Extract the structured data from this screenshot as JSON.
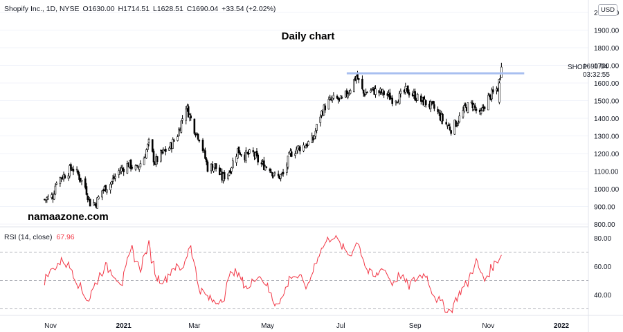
{
  "header": {
    "symbol": "Shopify Inc., 1D, NYSE",
    "open": "O1630.00",
    "high": "H1714.51",
    "low": "L1628.51",
    "close": "C1690.04",
    "change": "+33.54 (+2.02%)"
  },
  "title": "Daily chart",
  "watermark": "namaazone.com",
  "currency_button": "USD",
  "price_tag": {
    "symbol": "SHOP",
    "price": "1690.04",
    "countdown": "03:32:55"
  },
  "rsi_legend": {
    "label": "RSI (14, close)",
    "value": "67.96"
  },
  "colors": {
    "candle": "#000000",
    "resistance": "#a8bff0",
    "rsi": "#f23645",
    "grid": "#f0f3fa",
    "axis_text": "#131722"
  },
  "chart_data": [
    {
      "type": "candlestick",
      "title": "Daily chart",
      "series": [
        {
          "name": "Shopify Inc., 1D, NYSE"
        }
      ],
      "x_ticks": [
        "Nov",
        "2021",
        "Mar",
        "May",
        "Jul",
        "Sep",
        "Nov",
        "2022"
      ],
      "y_ticks": [
        800,
        900,
        1000,
        1100,
        1200,
        1300,
        1400,
        1500,
        1600,
        1700,
        1800,
        1900,
        2000
      ],
      "ylim": [
        800,
        2000
      ],
      "grid": false,
      "last_close": 1690.04,
      "resistance_level": 1655,
      "close_path": [
        [
          "2020-10-27",
          940
        ],
        [
          "2020-11-03",
          960
        ],
        [
          "2020-11-06",
          1050
        ],
        [
          "2020-11-13",
          1080
        ],
        [
          "2020-11-19",
          1120
        ],
        [
          "2020-11-24",
          1080
        ],
        [
          "2020-11-30",
          1010
        ],
        [
          "2020-12-04",
          920
        ],
        [
          "2020-12-09",
          920
        ],
        [
          "2020-12-14",
          990
        ],
        [
          "2020-12-21",
          1030
        ],
        [
          "2020-12-28",
          1100
        ],
        [
          "2021-01-05",
          1140
        ],
        [
          "2021-01-12",
          1110
        ],
        [
          "2021-01-18",
          1180
        ],
        [
          "2021-01-22",
          1260
        ],
        [
          "2021-01-27",
          1150
        ],
        [
          "2021-02-02",
          1200
        ],
        [
          "2021-02-09",
          1240
        ],
        [
          "2021-02-15",
          1310
        ],
        [
          "2021-02-22",
          1470
        ],
        [
          "2021-03-01",
          1340
        ],
        [
          "2021-03-06",
          1280
        ],
        [
          "2021-03-12",
          1120
        ],
        [
          "2021-03-18",
          1130
        ],
        [
          "2021-03-24",
          1060
        ],
        [
          "2021-03-30",
          1100
        ],
        [
          "2021-04-06",
          1220
        ],
        [
          "2021-04-12",
          1190
        ],
        [
          "2021-04-19",
          1200
        ],
        [
          "2021-04-25",
          1140
        ],
        [
          "2021-05-03",
          1120
        ],
        [
          "2021-05-08",
          1060
        ],
        [
          "2021-05-14",
          1080
        ],
        [
          "2021-05-20",
          1200
        ],
        [
          "2021-05-26",
          1230
        ],
        [
          "2021-06-02",
          1250
        ],
        [
          "2021-06-08",
          1280
        ],
        [
          "2021-06-14",
          1420
        ],
        [
          "2021-06-20",
          1490
        ],
        [
          "2021-06-26",
          1510
        ],
        [
          "2021-07-02",
          1500
        ],
        [
          "2021-07-08",
          1560
        ],
        [
          "2021-07-14",
          1640
        ],
        [
          "2021-07-20",
          1540
        ],
        [
          "2021-07-26",
          1560
        ],
        [
          "2021-08-01",
          1550
        ],
        [
          "2021-08-07",
          1540
        ],
        [
          "2021-08-13",
          1510
        ],
        [
          "2021-08-19",
          1520
        ],
        [
          "2021-08-25",
          1560
        ],
        [
          "2021-08-31",
          1530
        ],
        [
          "2021-09-06",
          1500
        ],
        [
          "2021-09-12",
          1480
        ],
        [
          "2021-09-18",
          1450
        ],
        [
          "2021-09-25",
          1380
        ],
        [
          "2021-10-01",
          1340
        ],
        [
          "2021-10-07",
          1390
        ],
        [
          "2021-10-13",
          1460
        ],
        [
          "2021-10-19",
          1480
        ],
        [
          "2021-10-25",
          1410
        ],
        [
          "2021-10-31",
          1510
        ],
        [
          "2021-11-05",
          1540
        ],
        [
          "2021-11-09",
          1570
        ],
        [
          "2021-11-12",
          1690.04
        ]
      ]
    },
    {
      "type": "line",
      "title": "RSI (14, close)",
      "last_value": 67.96,
      "y_ticks": [
        40,
        60,
        80
      ],
      "ylim": [
        25,
        85
      ],
      "levels": [
        70,
        50,
        30
      ],
      "x": [
        "2020-10-27",
        "2020-11-05",
        "2020-11-12",
        "2020-11-19",
        "2020-11-26",
        "2020-12-03",
        "2020-12-10",
        "2020-12-17",
        "2020-12-24",
        "2020-12-31",
        "2021-01-08",
        "2021-01-15",
        "2021-01-22",
        "2021-01-29",
        "2021-02-05",
        "2021-02-12",
        "2021-02-19",
        "2021-02-26",
        "2021-03-05",
        "2021-03-12",
        "2021-03-19",
        "2021-03-26",
        "2021-04-02",
        "2021-04-09",
        "2021-04-16",
        "2021-04-23",
        "2021-04-30",
        "2021-05-07",
        "2021-05-14",
        "2021-05-21",
        "2021-05-28",
        "2021-06-04",
        "2021-06-11",
        "2021-06-18",
        "2021-06-25",
        "2021-07-02",
        "2021-07-09",
        "2021-07-16",
        "2021-07-23",
        "2021-07-30",
        "2021-08-06",
        "2021-08-13",
        "2021-08-20",
        "2021-08-27",
        "2021-09-03",
        "2021-09-10",
        "2021-09-17",
        "2021-09-24",
        "2021-10-01",
        "2021-10-08",
        "2021-10-15",
        "2021-10-22",
        "2021-10-29",
        "2021-11-05",
        "2021-11-12"
      ],
      "values": [
        50,
        60,
        64,
        58,
        45,
        36,
        50,
        60,
        55,
        48,
        72,
        58,
        75,
        52,
        50,
        60,
        57,
        76,
        45,
        38,
        34,
        39,
        58,
        51,
        44,
        55,
        48,
        34,
        38,
        54,
        52,
        45,
        65,
        76,
        82,
        74,
        68,
        78,
        57,
        52,
        60,
        48,
        54,
        46,
        52,
        55,
        40,
        33,
        28,
        41,
        48,
        64,
        50,
        60,
        67.96
      ]
    }
  ]
}
